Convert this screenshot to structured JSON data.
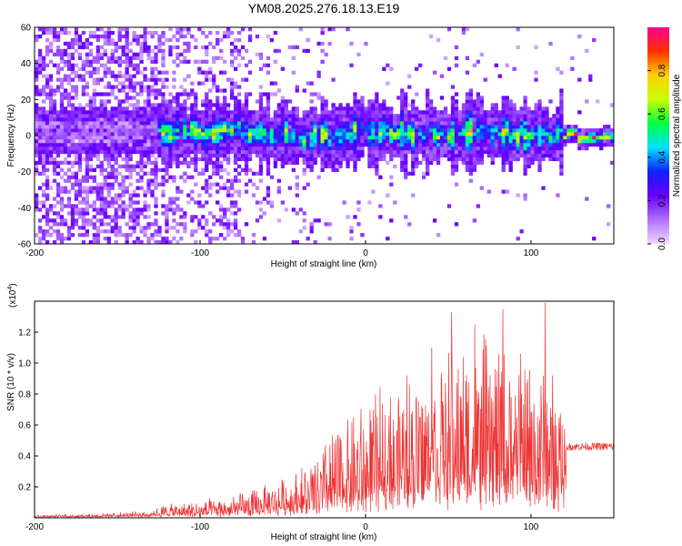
{
  "figure": {
    "title": "YM08.2025.276.18.13.E19"
  },
  "chart_data": [
    {
      "type": "heatmap",
      "title": "YM08.2025.276.18.13.E19",
      "xlabel": "Height of straight line (km)",
      "ylabel": "Frequency (Hz)",
      "xlim": [
        -200,
        150
      ],
      "ylim": [
        -60,
        60
      ],
      "xticks": [
        -200,
        -100,
        0,
        100
      ],
      "xtick_labels": [
        "-200",
        "-100",
        "0",
        "100"
      ],
      "yticks": [
        -60,
        -40,
        -20,
        0,
        20,
        40,
        60
      ],
      "ytick_labels": [
        "-60",
        "-40",
        "-20",
        "0",
        "20",
        "40",
        "60"
      ],
      "colorbar": {
        "label": "Normalized spectral amplitude",
        "range": [
          0,
          1
        ],
        "ticks": [
          0,
          0.2,
          0.4,
          0.6,
          0.8
        ],
        "tick_labels": [
          "0.0",
          "0.2",
          "0.4",
          "0.6",
          "0.8"
        ],
        "colors": [
          "#f3d8ff",
          "#b070ff",
          "#6a00ff",
          "#1020ff",
          "#00e0ff",
          "#00ff40",
          "#c8ff00",
          "#ffd000",
          "#ff3000",
          "#ff0090"
        ]
      },
      "description_bands": {
        "noise_region_x": [
          -200,
          -75
        ],
        "signal_band_center_hz": [
          [
            -125,
            2
          ],
          [
            -100,
            2
          ],
          [
            -80,
            3
          ],
          [
            -60,
            1
          ],
          [
            -40,
            -1
          ],
          [
            -20,
            0
          ],
          [
            0,
            3
          ],
          [
            20,
            1
          ],
          [
            40,
            0
          ],
          [
            60,
            1
          ],
          [
            80,
            2
          ],
          [
            100,
            0
          ],
          [
            120,
            0
          ],
          [
            150,
            -2
          ]
        ]
      }
    },
    {
      "type": "line",
      "xlabel": "Height of straight line (km)",
      "ylabel": "SNR (10 * v/v)",
      "y_multiplier": "(x10",
      "y_multiplier_exp": "4",
      "y_multiplier_close": ")",
      "color": "#ee3333",
      "xlim": [
        -200,
        150
      ],
      "ylim": [
        0,
        1.4
      ],
      "xticks": [
        -200,
        -100,
        0,
        100
      ],
      "xtick_labels": [
        "-200",
        "-100",
        "0",
        "100"
      ],
      "yticks": [
        0.2,
        0.4,
        0.6,
        0.8,
        1.0,
        1.2
      ],
      "ytick_labels": [
        "0.2",
        "0.4",
        "0.6",
        "0.8",
        "1.0",
        "1.2"
      ],
      "envelope": {
        "x": [
          -200,
          -160,
          -130,
          -120,
          -100,
          -80,
          -60,
          -50,
          -40,
          -30,
          -20,
          -10,
          0,
          10,
          20,
          30,
          40,
          50,
          60,
          70,
          80,
          90,
          100,
          110,
          118,
          122,
          130,
          140,
          150
        ],
        "baseline": [
          0.01,
          0.01,
          0.02,
          0.02,
          0.02,
          0.03,
          0.05,
          0.06,
          0.07,
          0.08,
          0.1,
          0.12,
          0.15,
          0.18,
          0.22,
          0.25,
          0.27,
          0.28,
          0.28,
          0.28,
          0.28,
          0.27,
          0.26,
          0.25,
          0.24,
          0.45,
          0.45,
          0.45,
          0.45
        ],
        "peak": [
          0.02,
          0.03,
          0.05,
          0.1,
          0.12,
          0.15,
          0.22,
          0.28,
          0.33,
          0.4,
          0.6,
          0.68,
          0.78,
          0.85,
          0.92,
          1.0,
          1.06,
          1.12,
          1.15,
          1.2,
          1.18,
          1.12,
          1.1,
          1.05,
          0.9,
          0.49,
          0.49,
          0.49,
          0.49
        ]
      },
      "spikes": [
        {
          "x": 108.5,
          "y": 1.39
        },
        {
          "x": 83,
          "y": 1.35
        },
        {
          "x": 52,
          "y": 1.33
        },
        {
          "x": 66,
          "y": 1.25
        },
        {
          "x": 40,
          "y": 1.1
        },
        {
          "x": 25,
          "y": 0.92
        },
        {
          "x": 15,
          "y": 0.78
        }
      ]
    }
  ]
}
